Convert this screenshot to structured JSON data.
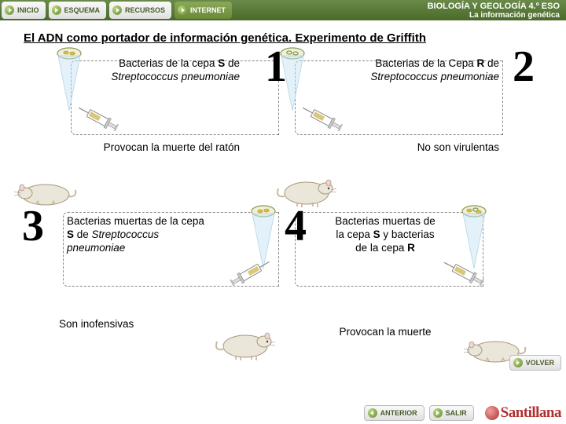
{
  "header": {
    "nav": [
      {
        "label": "INICIO"
      },
      {
        "label": "ESQUEMA"
      },
      {
        "label": "RECURSOS"
      },
      {
        "label": "INTERNET"
      }
    ],
    "title_line1": "BIOLOGÍA Y GEOLOGÍA 4.º ESO",
    "title_line2": "La información genética"
  },
  "title": "El ADN como portador de información genética. Experimento de Griffith",
  "panels": [
    {
      "num": "1",
      "desc_html": "Bacterias de la cepa <b>S</b> de <i>Streptococcus pneumoniae</i>",
      "result": "Provocan la muerte del ratón",
      "bact_type": "s",
      "mouse_state": "dead"
    },
    {
      "num": "2",
      "desc_html": "Bacterias de la Cepa <b>R</b> de <i>Streptococcus pneumoniae</i>",
      "result": "No son virulentas",
      "bact_type": "r",
      "mouse_state": "alive"
    },
    {
      "num": "3",
      "desc_html": "Bacterias muertas de la cepa <b>S</b> de <i>Streptococcus pneumoniae</i>",
      "result": "Son inofensivas",
      "bact_type": "s",
      "mouse_state": "alive"
    },
    {
      "num": "4",
      "desc_html": "Bacterias muertas de la cepa <b>S</b> y bacterias de la cepa <b>R</b>",
      "result": "Provocan la muerte",
      "bact_type": "mix",
      "mouse_state": "dead"
    }
  ],
  "footer": {
    "anterior": "ANTERIOR",
    "salir": "SALIR",
    "volver": "VOLVER",
    "brand": "Santillana"
  },
  "colors": {
    "nav_green": "#6a8a3a",
    "brand_red": "#b03030",
    "cone_light": "#d8ecf6",
    "mouse_body": "#eae6da",
    "mouse_outline": "#a89878"
  }
}
